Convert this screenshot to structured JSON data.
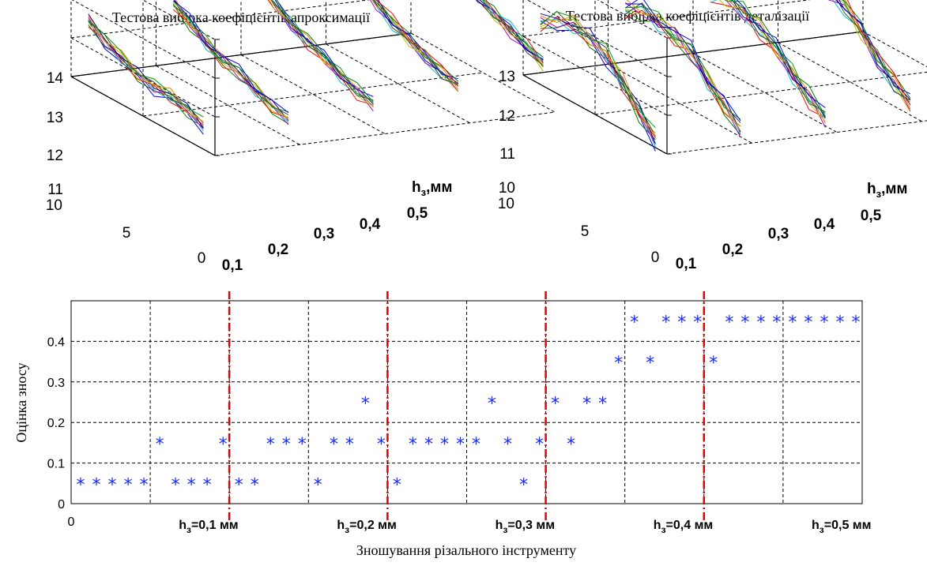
{
  "chart_data": [
    {
      "type": "line3d",
      "title": "Тестова вибірка коефіцієнтів апроксимації",
      "z_ticks": [
        "11",
        "12",
        "13",
        "14"
      ],
      "y_ticks": [
        "10",
        "5",
        "0"
      ],
      "x_ticks": [
        "0,1",
        "0,2",
        "0,3",
        "0,4",
        "0,5"
      ],
      "x_label": "h",
      "x_label_sub": "з",
      "x_label_unit": ",мм",
      "zlim": [
        11,
        14
      ],
      "ylim": [
        0,
        10
      ],
      "groups": [
        {
          "h": "0,1",
          "base_profile": [
            12.7,
            12.4,
            12.2,
            12.0,
            11.9,
            11.9,
            11.8,
            11.6
          ]
        },
        {
          "h": "0,2",
          "base_profile": [
            12.9,
            12.6,
            12.3,
            12.1,
            12.0,
            11.8,
            11.6,
            11.5
          ]
        },
        {
          "h": "0,3",
          "base_profile": [
            13.2,
            12.8,
            12.5,
            12.3,
            12.1,
            11.9,
            11.7,
            11.6
          ]
        },
        {
          "h": "0,4",
          "base_profile": [
            13.4,
            13.1,
            12.8,
            12.5,
            12.3,
            12.1,
            11.9,
            11.8
          ]
        },
        {
          "h": "0,5",
          "base_profile": [
            13.8,
            13.5,
            13.2,
            12.9,
            12.7,
            12.5,
            12.3,
            12.1
          ]
        }
      ],
      "lines_per_group": 10
    },
    {
      "type": "line3d",
      "title": "Тестова вибірка коефіцієнтів деталізації",
      "z_ticks": [
        "10",
        "11",
        "12",
        "13"
      ],
      "y_ticks": [
        "10",
        "5",
        "0"
      ],
      "x_ticks": [
        "0,1",
        "0,2",
        "0,3",
        "0,4",
        "0,5"
      ],
      "x_label": "h",
      "x_label_sub": "з",
      "x_label_unit": ",мм",
      "zlim": [
        10,
        13
      ],
      "ylim": [
        0,
        10
      ],
      "groups": [
        {
          "h": "0,1",
          "base_profile": [
            11.6,
            11.9,
            12.0,
            11.9,
            11.7,
            11.2,
            10.7,
            10.2
          ]
        },
        {
          "h": "0,2",
          "base_profile": [
            11.7,
            11.9,
            11.8,
            11.7,
            11.5,
            11.0,
            10.6,
            10.2
          ]
        },
        {
          "h": "0,3",
          "base_profile": [
            11.8,
            11.9,
            11.8,
            11.6,
            11.3,
            10.9,
            10.5,
            10.2
          ]
        },
        {
          "h": "0,4",
          "base_profile": [
            11.8,
            12.0,
            12.1,
            11.9,
            11.5,
            11.0,
            10.6,
            10.3
          ]
        },
        {
          "h": "0,5",
          "base_profile": [
            12.0,
            12.3,
            12.5,
            12.4,
            12.1,
            11.6,
            11.1,
            10.6
          ]
        }
      ],
      "lines_per_group": 10
    },
    {
      "type": "scatter",
      "ylabel": "Оцінка зносу",
      "xlabel": "Зношування різального інструменту",
      "xlim": [
        0,
        50
      ],
      "ylim": [
        0,
        0.5
      ],
      "y_ticks": [
        "0",
        "0.1",
        "0.2",
        "0.3",
        "0.4"
      ],
      "x_ticks": [
        "0"
      ],
      "category_labels": [
        {
          "main": "h",
          "sub": "з",
          "rest": "=0,1 мм",
          "x": 10
        },
        {
          "main": "h",
          "sub": "з",
          "rest": "=0,2 мм",
          "x": 20
        },
        {
          "main": "h",
          "sub": "з",
          "rest": "=0,3 мм",
          "x": 30
        },
        {
          "main": "h",
          "sub": "з",
          "rest": "=0,4 мм",
          "x": 40
        },
        {
          "main": "h",
          "sub": "з",
          "rest": "=0,5 мм",
          "x": 50
        }
      ],
      "marker": "*",
      "marker_color": "#1a2bff",
      "separator_color": "#e00000",
      "separators_x": [
        10,
        20,
        30,
        40
      ],
      "points": [
        [
          1,
          0.05
        ],
        [
          2,
          0.05
        ],
        [
          3,
          0.05
        ],
        [
          4,
          0.05
        ],
        [
          5,
          0.05
        ],
        [
          6,
          0.15
        ],
        [
          7,
          0.05
        ],
        [
          8,
          0.05
        ],
        [
          9,
          0.05
        ],
        [
          10,
          0.15
        ],
        [
          11,
          0.05
        ],
        [
          12,
          0.05
        ],
        [
          13,
          0.15
        ],
        [
          14,
          0.15
        ],
        [
          15,
          0.15
        ],
        [
          16,
          0.05
        ],
        [
          17,
          0.15
        ],
        [
          18,
          0.15
        ],
        [
          19,
          0.25
        ],
        [
          20,
          0.15
        ],
        [
          21,
          0.05
        ],
        [
          22,
          0.15
        ],
        [
          23,
          0.15
        ],
        [
          24,
          0.15
        ],
        [
          25,
          0.15
        ],
        [
          26,
          0.15
        ],
        [
          27,
          0.25
        ],
        [
          28,
          0.15
        ],
        [
          29,
          0.05
        ],
        [
          30,
          0.15
        ],
        [
          31,
          0.25
        ],
        [
          32,
          0.15
        ],
        [
          33,
          0.25
        ],
        [
          34,
          0.25
        ],
        [
          35,
          0.35
        ],
        [
          36,
          0.45
        ],
        [
          37,
          0.35
        ],
        [
          38,
          0.45
        ],
        [
          39,
          0.45
        ],
        [
          40,
          0.45
        ],
        [
          41,
          0.35
        ],
        [
          42,
          0.45
        ],
        [
          43,
          0.45
        ],
        [
          44,
          0.45
        ],
        [
          45,
          0.45
        ],
        [
          46,
          0.45
        ],
        [
          47,
          0.45
        ],
        [
          48,
          0.45
        ],
        [
          49,
          0.45
        ],
        [
          50,
          0.45
        ]
      ]
    }
  ],
  "colors": {
    "axis": "#000000",
    "grid": "#000000",
    "line_palette": [
      "#0000ff",
      "#008000",
      "#ff0000",
      "#00bfbf",
      "#bf00bf",
      "#bfbf00",
      "#404040",
      "#0000a0",
      "#ff8000",
      "#00a000"
    ]
  }
}
